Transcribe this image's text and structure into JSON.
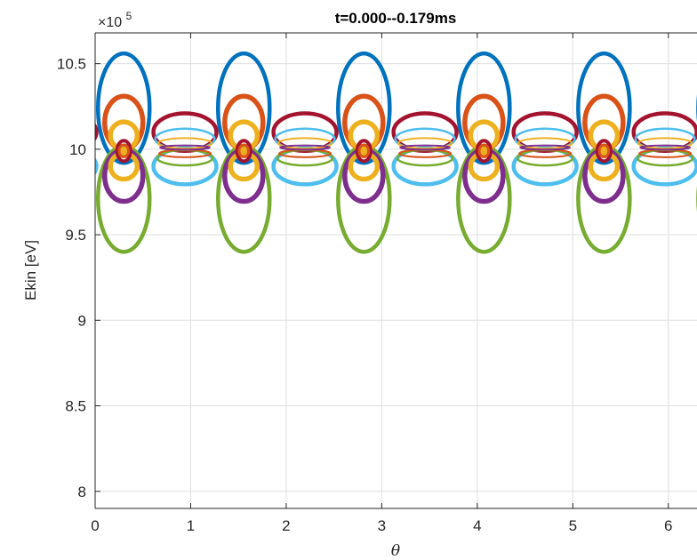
{
  "chart_data": {
    "type": "scatter",
    "title": "t=0.000--0.179ms",
    "xlabel": "θ",
    "ylabel": "Ekin [eV]",
    "y_exponent_label": {
      "prefix": "×10",
      "power": "5"
    },
    "xlim": [
      0,
      6.3
    ],
    "ylim": [
      7.9,
      10.68
    ],
    "y_scale_factor": 100000,
    "xticks": [
      0,
      1,
      2,
      3,
      4,
      5,
      6
    ],
    "yticks": [
      8,
      8.5,
      9,
      9.5,
      10,
      10.5
    ],
    "grid": true,
    "legend": "none",
    "period": 1.2566,
    "series": [
      {
        "color": "#0072BD",
        "center_x": 0.3,
        "center_y": 10.24,
        "radius_x": 0.27,
        "radius_y": 0.32,
        "thickness": 4.5
      },
      {
        "color": "#77AC30",
        "center_x": 0.3,
        "center_y": 9.71,
        "radius_x": 0.27,
        "radius_y": 0.31,
        "thickness": 4.5
      },
      {
        "color": "#D95319",
        "center_x": 0.3,
        "center_y": 10.155,
        "radius_x": 0.2,
        "radius_y": 0.155,
        "thickness": 5.5
      },
      {
        "color": "#7E2F8E",
        "center_x": 0.3,
        "center_y": 9.845,
        "radius_x": 0.2,
        "radius_y": 0.15,
        "thickness": 5.5
      },
      {
        "color": "#EDB120",
        "center_x": 0.3,
        "center_y": 10.08,
        "radius_x": 0.14,
        "radius_y": 0.08,
        "thickness": 5.5
      },
      {
        "color": "#EDB120",
        "center_x": 0.3,
        "center_y": 9.9,
        "radius_x": 0.14,
        "radius_y": 0.075,
        "thickness": 5.5
      },
      {
        "color": "#A2142F",
        "center_x": 0.3,
        "center_y": 9.99,
        "radius_x": 0.07,
        "radius_y": 0.06,
        "thickness": 4
      },
      {
        "color": "#D95319",
        "center_x": 0.3,
        "center_y": 9.99,
        "radius_x": 0.05,
        "radius_y": 0.035,
        "thickness": 3
      },
      {
        "color": "#A2142F",
        "center_x": 0.94,
        "center_y": 10.1,
        "radius_x": 0.33,
        "radius_y": 0.11,
        "thickness": 4.5
      },
      {
        "color": "#4DBEEE",
        "center_x": 0.94,
        "center_y": 9.9,
        "radius_x": 0.33,
        "radius_y": 0.105,
        "thickness": 4.5
      },
      {
        "color": "#4DBEEE",
        "center_x": 0.94,
        "center_y": 10.06,
        "radius_x": 0.31,
        "radius_y": 0.06,
        "thickness": 2.5
      },
      {
        "color": "#77AC30",
        "center_x": 0.94,
        "center_y": 9.95,
        "radius_x": 0.29,
        "radius_y": 0.045,
        "thickness": 2.5
      },
      {
        "color": "#EDB120",
        "center_x": 0.94,
        "center_y": 10.035,
        "radius_x": 0.28,
        "radius_y": 0.03,
        "thickness": 2
      },
      {
        "color": "#D95319",
        "center_x": 0.94,
        "center_y": 9.975,
        "radius_x": 0.27,
        "radius_y": 0.022,
        "thickness": 2
      },
      {
        "color": "#7E2F8E",
        "center_x": 0.94,
        "center_y": 10.01,
        "radius_x": 0.26,
        "radius_y": 0.012,
        "thickness": 2
      }
    ]
  }
}
